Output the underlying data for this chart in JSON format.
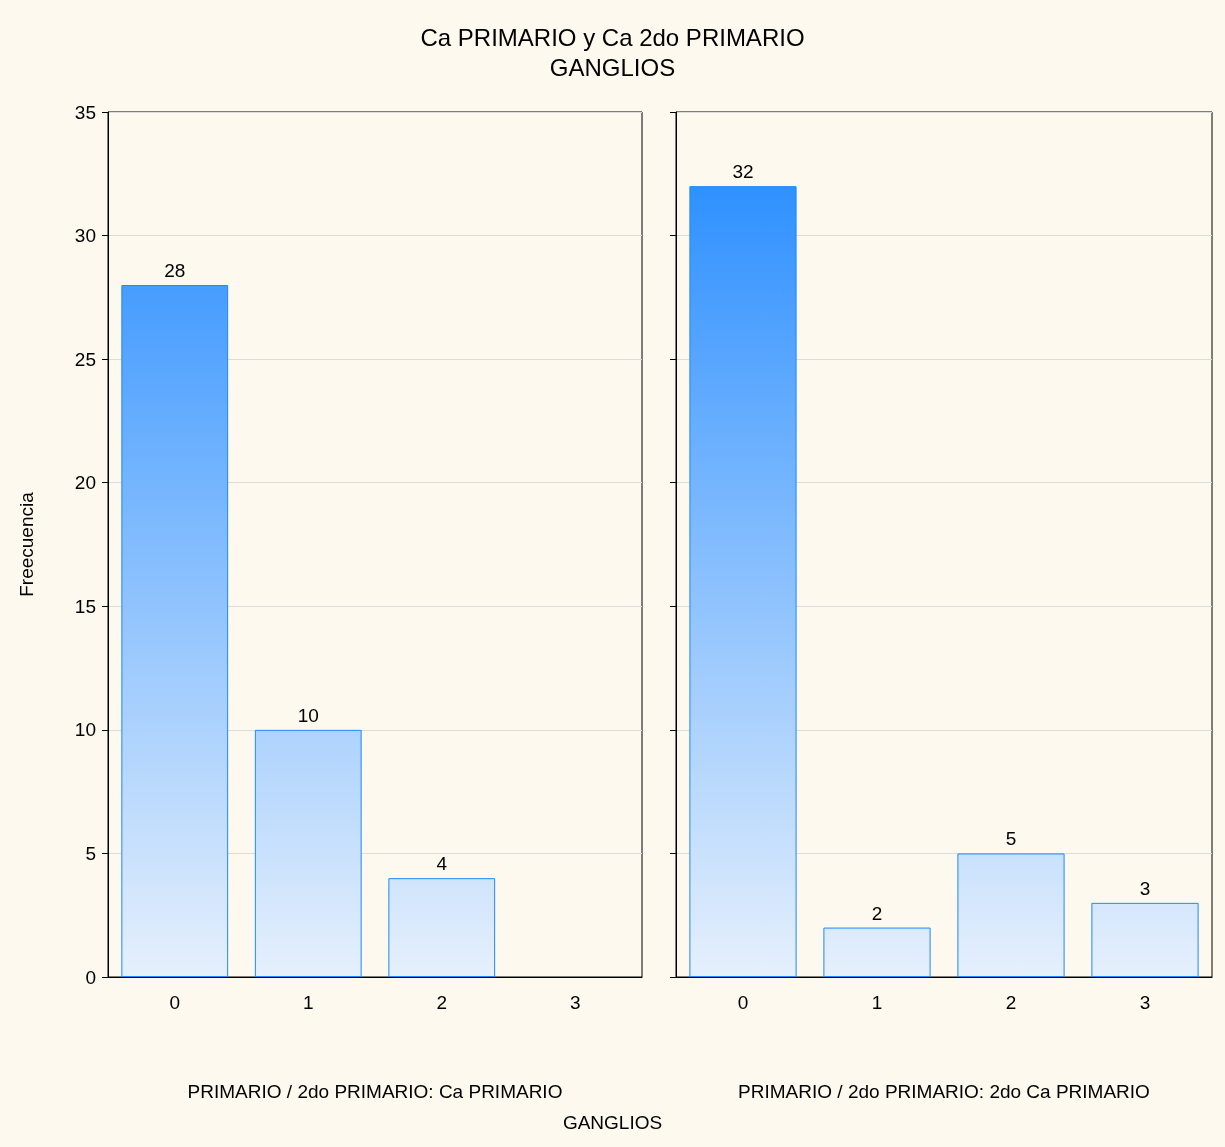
{
  "chart_data": [
    {
      "type": "bar",
      "title": "Ca PRIMARIO y Ca 2do PRIMARIO",
      "subtitle": "GANGLIOS",
      "xlabel": "PRIMARIO / 2do PRIMARIO: Ca PRIMARIO",
      "ylabel": "Freecuencia",
      "annotations": [
        "GANGLIOS"
      ],
      "categories": [
        "0",
        "1",
        "2",
        "3"
      ],
      "values": [
        28,
        10,
        4,
        0
      ],
      "value_labels": [
        "28",
        "10",
        "4",
        null
      ],
      "color": "#1e88ff",
      "ylim": [
        0,
        35
      ],
      "yticks": [
        0,
        5,
        10,
        15,
        20,
        25,
        30,
        35
      ],
      "grid": "y"
    },
    {
      "type": "bar",
      "xlabel": "PRIMARIO / 2do PRIMARIO: 2do Ca PRIMARIO",
      "categories": [
        "0",
        "1",
        "2",
        "3"
      ],
      "values": [
        32,
        2,
        5,
        3
      ],
      "data_labels": true,
      "color": "#1e88ff",
      "ylim": [
        0,
        35
      ],
      "yticks": [
        0,
        5,
        10,
        15,
        20,
        25,
        30,
        35
      ],
      "grid": "y",
      "tick_labels": "x"
    }
  ]
}
